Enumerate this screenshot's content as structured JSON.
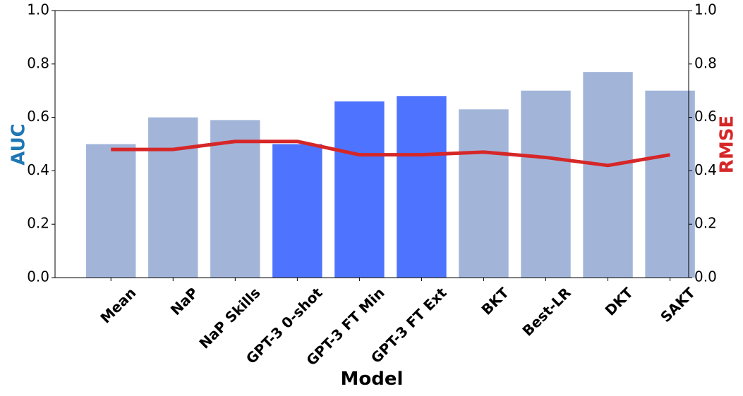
{
  "chart_data": {
    "type": "bar",
    "categories": [
      "Mean",
      "NaP",
      "NaP Skills",
      "GPT-3 0-shot",
      "GPT-3 FT Min",
      "GPT-3 FT Ext",
      "BKT",
      "Best-LR",
      "DKT",
      "SAKT"
    ],
    "series": [
      {
        "name": "AUC",
        "type": "bar",
        "axis": "left",
        "values": [
          0.5,
          0.6,
          0.59,
          0.5,
          0.66,
          0.68,
          0.63,
          0.7,
          0.77,
          0.7
        ],
        "colors": [
          "#a2b5d9",
          "#a2b5d9",
          "#a2b5d9",
          "#4e74ff",
          "#4e74ff",
          "#4e74ff",
          "#a2b5d9",
          "#a2b5d9",
          "#a2b5d9",
          "#a2b5d9"
        ]
      },
      {
        "name": "RMSE",
        "type": "line",
        "axis": "right",
        "color": "#d62728",
        "values": [
          0.48,
          0.48,
          0.51,
          0.51,
          0.46,
          0.46,
          0.47,
          0.45,
          0.42,
          0.46
        ]
      }
    ],
    "xlabel": "Model",
    "ylabel": "AUC",
    "y2label": "RMSE",
    "ylim": [
      0,
      1.0
    ],
    "y2lim": [
      0,
      1.0
    ],
    "yticks": [
      "0.0",
      "0.2",
      "0.4",
      "0.6",
      "0.8",
      "1.0"
    ],
    "y2ticks": [
      "0.0",
      "0.2",
      "0.4",
      "0.6",
      "0.8",
      "1.0"
    ],
    "grid": false,
    "colors": {
      "ylabel": "#1f77b4",
      "y2label": "#d62728",
      "axis": "#000000"
    }
  }
}
